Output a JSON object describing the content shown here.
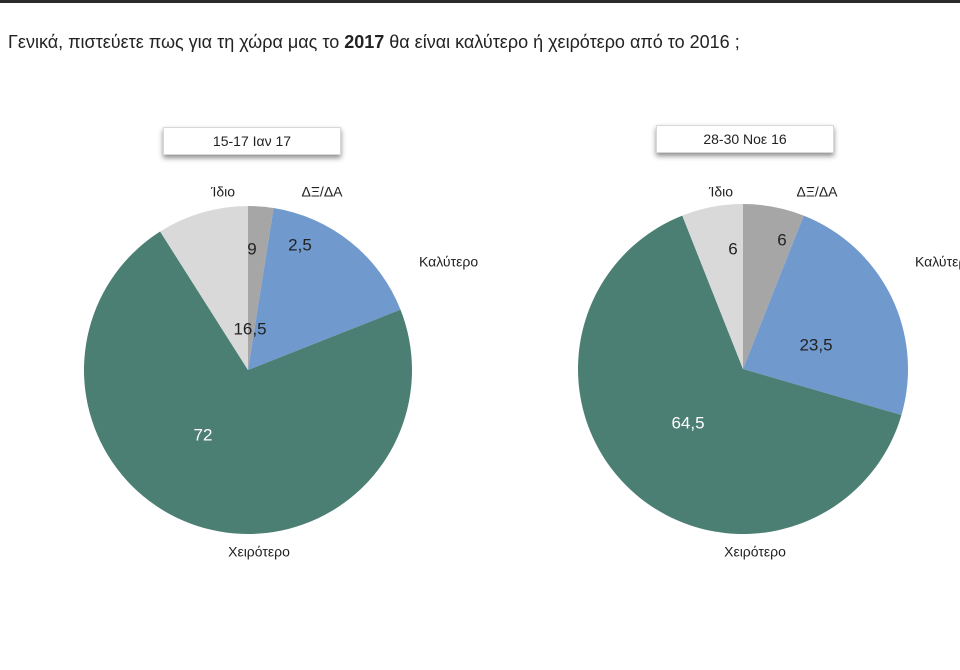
{
  "header": {
    "question_part1": "Γενικά, πιστεύετε πως για τη χώρα μας το ",
    "question_bold": "2017",
    "question_part2": " θα είναι καλύτερο ή χειρότερο από το 2016 ;"
  },
  "colors": {
    "Καλύτερο": "#7099ce",
    "Χειρότερο": "#4c7f73",
    "Ίδιο": "#d9d9d9",
    "ΔΞ/ΔΑ": "#a6a6a6"
  },
  "chart_data": [
    {
      "type": "pie",
      "title": "15-17 Ιαν 17",
      "categories": [
        "Καλύτερο",
        "Χειρότερο",
        "Ίδιο",
        "ΔΞ/ΔΑ"
      ],
      "values": [
        16.5,
        72,
        9,
        2.5
      ],
      "value_labels": [
        "16,5",
        "72",
        "9",
        "2,5"
      ]
    },
    {
      "type": "pie",
      "title": "28-30 Νοε 16",
      "categories": [
        "Καλύτερο",
        "Χειρότερο",
        "Ίδιο",
        "ΔΞ/ΔΑ"
      ],
      "values": [
        23.5,
        64.5,
        6,
        6
      ],
      "value_labels": [
        "23,5",
        "64,5",
        "6",
        "6"
      ]
    }
  ]
}
